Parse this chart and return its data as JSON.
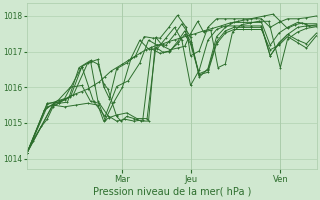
{
  "xlabel": "Pression niveau de la mer( hPa )",
  "bg_color": "#d0e8d0",
  "plot_bg_color": "#d0e8d0",
  "grid_color": "#aaccaa",
  "line_color": "#2d6e2d",
  "ylim": [
    1013.7,
    1018.35
  ],
  "yticks": [
    1014,
    1015,
    1016,
    1017,
    1018
  ],
  "day_positions": [
    0.33,
    0.565,
    0.875
  ],
  "day_labels": [
    "Mar",
    "Jeu",
    "Ven"
  ],
  "xlim": [
    0.0,
    1.0
  ],
  "series": [
    [
      [
        0.0,
        1014.15
      ],
      [
        0.02,
        1014.5
      ],
      [
        0.05,
        1014.9
      ],
      [
        0.07,
        1015.1
      ],
      [
        0.09,
        1015.45
      ],
      [
        0.11,
        1015.55
      ],
      [
        0.13,
        1015.65
      ],
      [
        0.15,
        1015.75
      ],
      [
        0.17,
        1015.82
      ],
      [
        0.19,
        1015.88
      ],
      [
        0.21,
        1015.95
      ],
      [
        0.23,
        1016.05
      ],
      [
        0.25,
        1016.15
      ],
      [
        0.27,
        1016.3
      ],
      [
        0.29,
        1016.45
      ],
      [
        0.31,
        1016.55
      ],
      [
        0.33,
        1016.65
      ],
      [
        0.35,
        1016.75
      ],
      [
        0.37,
        1016.85
      ],
      [
        0.39,
        1016.95
      ],
      [
        0.41,
        1017.05
      ],
      [
        0.43,
        1017.12
      ],
      [
        0.45,
        1017.18
      ],
      [
        0.47,
        1017.22
      ],
      [
        0.49,
        1017.28
      ],
      [
        0.51,
        1017.33
      ],
      [
        0.53,
        1017.38
      ],
      [
        0.55,
        1017.43
      ],
      [
        0.58,
        1017.5
      ],
      [
        0.61,
        1017.58
      ],
      [
        0.64,
        1017.65
      ],
      [
        0.67,
        1017.72
      ],
      [
        0.7,
        1017.8
      ],
      [
        0.73,
        1017.85
      ],
      [
        0.76,
        1017.9
      ],
      [
        0.79,
        1017.95
      ],
      [
        0.82,
        1018.0
      ],
      [
        0.85,
        1018.05
      ],
      [
        0.875,
        1017.85
      ],
      [
        0.9,
        1017.65
      ],
      [
        0.925,
        1017.75
      ],
      [
        0.95,
        1017.8
      ],
      [
        0.975,
        1017.72
      ],
      [
        1.0,
        1017.75
      ]
    ],
    [
      [
        0.0,
        1014.15
      ],
      [
        0.07,
        1015.45
      ],
      [
        0.11,
        1015.55
      ],
      [
        0.14,
        1015.58
      ],
      [
        0.18,
        1016.55
      ],
      [
        0.22,
        1016.75
      ],
      [
        0.245,
        1016.65
      ],
      [
        0.265,
        1016.1
      ],
      [
        0.28,
        1015.95
      ],
      [
        0.295,
        1015.55
      ],
      [
        0.31,
        1015.18
      ],
      [
        0.325,
        1015.05
      ],
      [
        0.345,
        1015.18
      ],
      [
        0.37,
        1015.12
      ],
      [
        0.395,
        1015.05
      ],
      [
        0.42,
        1015.05
      ],
      [
        0.445,
        1017.4
      ],
      [
        0.47,
        1017.15
      ],
      [
        0.495,
        1017.05
      ],
      [
        0.52,
        1017.1
      ],
      [
        0.545,
        1017.15
      ],
      [
        0.565,
        1017.5
      ],
      [
        0.59,
        1017.85
      ],
      [
        0.61,
        1017.55
      ],
      [
        0.635,
        1017.6
      ],
      [
        0.66,
        1016.55
      ],
      [
        0.685,
        1016.65
      ],
      [
        0.71,
        1017.55
      ],
      [
        0.74,
        1017.75
      ],
      [
        0.77,
        1017.8
      ],
      [
        0.8,
        1017.85
      ],
      [
        0.835,
        1017.85
      ],
      [
        0.875,
        1016.55
      ],
      [
        0.9,
        1017.35
      ],
      [
        0.935,
        1017.55
      ],
      [
        0.965,
        1017.65
      ],
      [
        1.0,
        1017.7
      ]
    ],
    [
      [
        0.0,
        1014.15
      ],
      [
        0.07,
        1015.55
      ],
      [
        0.11,
        1015.58
      ],
      [
        0.15,
        1015.72
      ],
      [
        0.19,
        1016.58
      ],
      [
        0.22,
        1016.72
      ],
      [
        0.245,
        1015.62
      ],
      [
        0.27,
        1015.08
      ],
      [
        0.3,
        1015.58
      ],
      [
        0.33,
        1016.0
      ],
      [
        0.36,
        1016.82
      ],
      [
        0.39,
        1017.32
      ],
      [
        0.42,
        1017.07
      ],
      [
        0.45,
        1017.08
      ],
      [
        0.48,
        1017.38
      ],
      [
        0.51,
        1017.68
      ],
      [
        0.535,
        1017.32
      ],
      [
        0.565,
        1016.05
      ],
      [
        0.595,
        1016.48
      ],
      [
        0.625,
        1017.32
      ],
      [
        0.655,
        1017.62
      ],
      [
        0.685,
        1017.72
      ],
      [
        0.715,
        1017.72
      ],
      [
        0.745,
        1017.72
      ],
      [
        0.775,
        1017.72
      ],
      [
        0.81,
        1017.72
      ],
      [
        0.84,
        1016.88
      ],
      [
        0.87,
        1017.25
      ],
      [
        0.9,
        1017.48
      ],
      [
        0.935,
        1017.68
      ],
      [
        0.965,
        1017.72
      ],
      [
        1.0,
        1017.72
      ]
    ],
    [
      [
        0.0,
        1014.15
      ],
      [
        0.07,
        1015.52
      ],
      [
        0.13,
        1015.68
      ],
      [
        0.19,
        1016.58
      ],
      [
        0.23,
        1015.6
      ],
      [
        0.27,
        1015.18
      ],
      [
        0.31,
        1016.02
      ],
      [
        0.35,
        1016.18
      ],
      [
        0.39,
        1016.68
      ],
      [
        0.42,
        1017.32
      ],
      [
        0.45,
        1017.18
      ],
      [
        0.48,
        1017.18
      ],
      [
        0.51,
        1017.48
      ],
      [
        0.535,
        1017.78
      ],
      [
        0.565,
        1017.42
      ],
      [
        0.595,
        1016.28
      ],
      [
        0.625,
        1016.52
      ],
      [
        0.655,
        1017.42
      ],
      [
        0.685,
        1017.68
      ],
      [
        0.715,
        1017.82
      ],
      [
        0.745,
        1017.82
      ],
      [
        0.775,
        1017.82
      ],
      [
        0.81,
        1017.82
      ],
      [
        0.84,
        1017.18
      ],
      [
        0.87,
        1017.52
      ],
      [
        0.9,
        1017.68
      ],
      [
        0.935,
        1017.82
      ],
      [
        0.965,
        1017.78
      ],
      [
        1.0,
        1017.78
      ]
    ],
    [
      [
        0.0,
        1014.15
      ],
      [
        0.09,
        1015.52
      ],
      [
        0.16,
        1015.78
      ],
      [
        0.21,
        1016.68
      ],
      [
        0.245,
        1016.78
      ],
      [
        0.265,
        1016.02
      ],
      [
        0.285,
        1015.68
      ],
      [
        0.31,
        1016.52
      ],
      [
        0.345,
        1016.68
      ],
      [
        0.375,
        1016.88
      ],
      [
        0.405,
        1017.42
      ],
      [
        0.435,
        1017.38
      ],
      [
        0.46,
        1017.38
      ],
      [
        0.49,
        1017.68
      ],
      [
        0.52,
        1018.02
      ],
      [
        0.55,
        1017.68
      ],
      [
        0.565,
        1016.88
      ],
      [
        0.595,
        1017.02
      ],
      [
        0.625,
        1017.68
      ],
      [
        0.655,
        1017.92
      ],
      [
        0.685,
        1017.92
      ],
      [
        0.715,
        1017.92
      ],
      [
        0.745,
        1017.92
      ],
      [
        0.775,
        1017.92
      ],
      [
        0.81,
        1017.92
      ],
      [
        0.84,
        1017.68
      ],
      [
        0.87,
        1017.82
      ],
      [
        0.9,
        1017.92
      ],
      [
        0.935,
        1017.92
      ],
      [
        0.965,
        1017.95
      ],
      [
        1.0,
        1018.0
      ]
    ],
    [
      [
        0.0,
        1014.15
      ],
      [
        0.09,
        1015.5
      ],
      [
        0.13,
        1015.45
      ],
      [
        0.17,
        1015.5
      ],
      [
        0.21,
        1015.55
      ],
      [
        0.245,
        1015.5
      ],
      [
        0.265,
        1015.05
      ],
      [
        0.285,
        1015.15
      ],
      [
        0.31,
        1015.22
      ],
      [
        0.345,
        1015.28
      ],
      [
        0.38,
        1015.12
      ],
      [
        0.415,
        1015.12
      ],
      [
        0.445,
        1017.12
      ],
      [
        0.47,
        1016.98
      ],
      [
        0.495,
        1017.02
      ],
      [
        0.52,
        1017.28
      ],
      [
        0.545,
        1017.58
      ],
      [
        0.565,
        1017.28
      ],
      [
        0.595,
        1016.38
      ],
      [
        0.625,
        1016.48
      ],
      [
        0.655,
        1017.28
      ],
      [
        0.685,
        1017.58
      ],
      [
        0.715,
        1017.68
      ],
      [
        0.745,
        1017.68
      ],
      [
        0.775,
        1017.68
      ],
      [
        0.81,
        1017.68
      ],
      [
        0.84,
        1016.88
      ],
      [
        0.87,
        1017.22
      ],
      [
        0.9,
        1017.48
      ],
      [
        0.935,
        1017.32
      ],
      [
        0.965,
        1017.22
      ],
      [
        1.0,
        1017.52
      ]
    ],
    [
      [
        0.0,
        1014.15
      ],
      [
        0.06,
        1015.35
      ],
      [
        0.11,
        1015.65
      ],
      [
        0.15,
        1016.0
      ],
      [
        0.19,
        1016.05
      ],
      [
        0.22,
        1015.6
      ],
      [
        0.25,
        1015.55
      ],
      [
        0.28,
        1015.2
      ],
      [
        0.31,
        1015.05
      ],
      [
        0.34,
        1015.1
      ],
      [
        0.37,
        1015.05
      ],
      [
        0.4,
        1015.08
      ],
      [
        0.43,
        1017.08
      ],
      [
        0.46,
        1016.95
      ],
      [
        0.49,
        1017.0
      ],
      [
        0.52,
        1017.22
      ],
      [
        0.545,
        1017.48
      ],
      [
        0.565,
        1017.22
      ],
      [
        0.595,
        1016.35
      ],
      [
        0.625,
        1016.42
      ],
      [
        0.655,
        1017.22
      ],
      [
        0.685,
        1017.52
      ],
      [
        0.715,
        1017.62
      ],
      [
        0.745,
        1017.62
      ],
      [
        0.775,
        1017.62
      ],
      [
        0.81,
        1017.62
      ],
      [
        0.84,
        1017.05
      ],
      [
        0.87,
        1017.18
      ],
      [
        0.9,
        1017.42
      ],
      [
        0.935,
        1017.25
      ],
      [
        0.965,
        1017.1
      ],
      [
        1.0,
        1017.45
      ]
    ]
  ]
}
